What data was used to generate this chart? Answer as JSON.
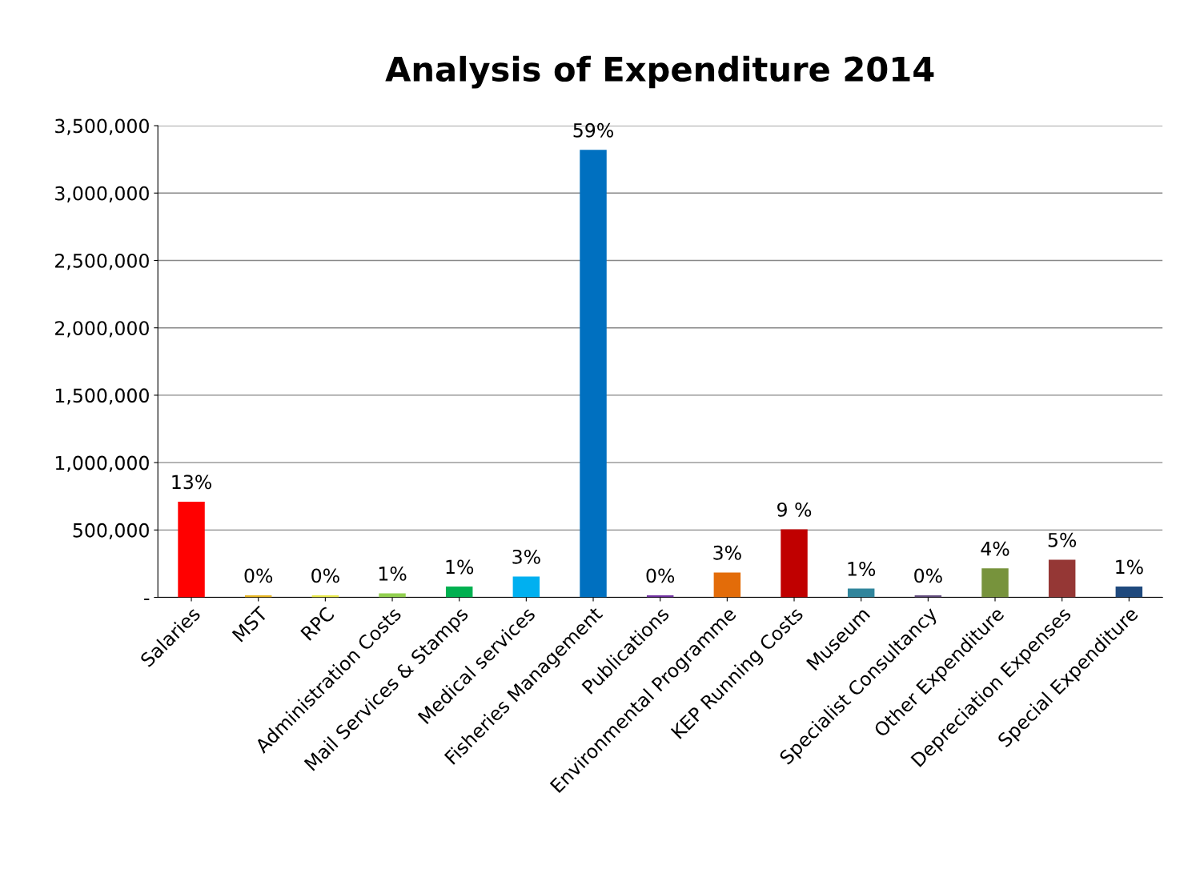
{
  "chart_data": {
    "type": "bar",
    "title": "Analysis of Expenditure 2014",
    "categories": [
      "Salaries",
      "MST",
      "RPC",
      "Administration Costs",
      "Mail Services & Stamps",
      "Medical services",
      "Fisheries Management",
      "Publications",
      "Environmental Programme",
      "KEP Running Costs",
      "Museum",
      "Specialist Consultancy",
      "Other Expenditure",
      "Depreciation Expenses",
      "Special Expenditure"
    ],
    "values": [
      710000,
      15000,
      15000,
      30000,
      80000,
      155000,
      3320000,
      15000,
      185000,
      505000,
      65000,
      15000,
      215000,
      280000,
      80000
    ],
    "colors": [
      "#ff0000",
      "#e6b422",
      "#e8e84a",
      "#92d050",
      "#00b050",
      "#00b0f0",
      "#0070c0",
      "#7030a0",
      "#e36c09",
      "#c00000",
      "#31859c",
      "#604a7b",
      "#77933c",
      "#953735",
      "#1f497d"
    ],
    "annotations": [
      {
        "text": "13%",
        "x": "Salaries",
        "y": 710000
      },
      {
        "text": "0%",
        "x": "MST",
        "y": 15000
      },
      {
        "text": "0%",
        "x": "RPC",
        "y": 15000
      },
      {
        "text": "1%",
        "x": "Administration Costs",
        "y": 30000
      },
      {
        "text": "1%",
        "x": "Mail Services & Stamps",
        "y": 80000
      },
      {
        "text": "3%",
        "x": "Medical services",
        "y": 155000
      },
      {
        "text": "59%",
        "x": "Fisheries Management",
        "y": 3320000
      },
      {
        "text": "0%",
        "x": "Publications",
        "y": 15000
      },
      {
        "text": "3%",
        "x": "Environmental Programme",
        "y": 185000
      },
      {
        "text": "9 %",
        "x": "KEP Running Costs",
        "y": 505000
      },
      {
        "text": "1%",
        "x": "Museum",
        "y": 65000
      },
      {
        "text": "0%",
        "x": "Specialist Consultancy",
        "y": 15000
      },
      {
        "text": "4%",
        "x": "Other Expenditure",
        "y": 215000
      },
      {
        "text": "5%",
        "x": "Depreciation Expenses",
        "y": 280000
      },
      {
        "text": "1%",
        "x": "Special Expenditure",
        "y": 80000
      }
    ],
    "ylim": [
      0,
      3500000
    ],
    "yticks": [
      {
        "value": 0,
        "label": "-"
      },
      {
        "value": 500000,
        "label": "500,000"
      },
      {
        "value": 1000000,
        "label": "1,000,000"
      },
      {
        "value": 1500000,
        "label": "1,500,000"
      },
      {
        "value": 2000000,
        "label": "2,000,000"
      },
      {
        "value": 2500000,
        "label": "2,500,000"
      },
      {
        "value": 3000000,
        "label": "3,000,000"
      },
      {
        "value": 3500000,
        "label": "3,500,000"
      }
    ],
    "grid": "y",
    "legend": false
  }
}
